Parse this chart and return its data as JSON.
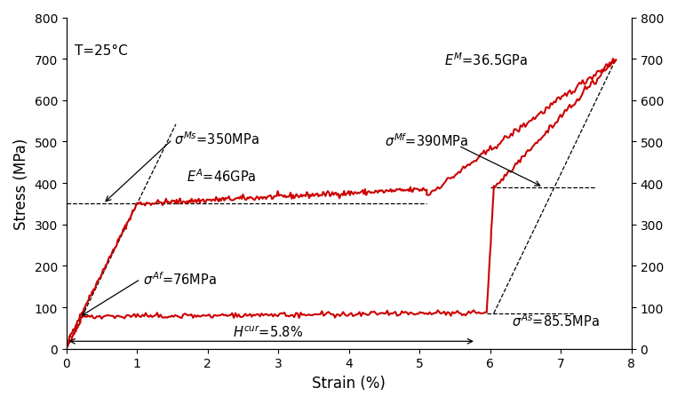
{
  "title": "",
  "xlabel": "Strain (%)",
  "ylabel": "Stress (MPa)",
  "ylim": [
    0,
    800
  ],
  "xlim": [
    0,
    8
  ],
  "background_color": "#ffffff",
  "curve_color": "#cc0000",
  "temp_label": "T=25°C",
  "fs": 10.5
}
